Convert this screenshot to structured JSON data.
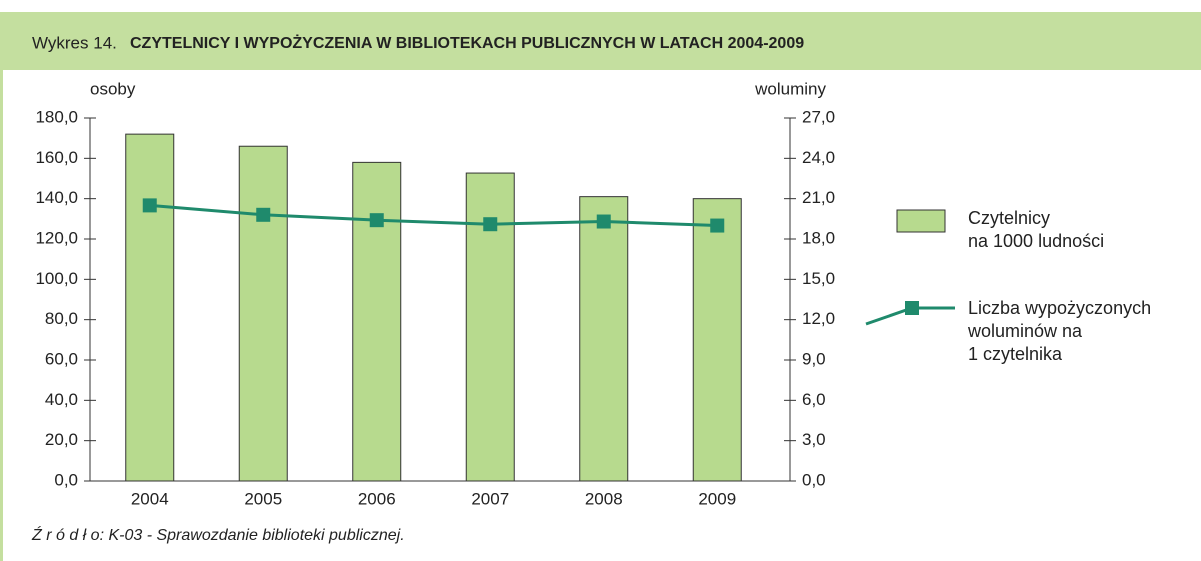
{
  "chart_data": {
    "type": "bar_line",
    "title_prefix": "Wykres 14.",
    "title": "CZYTELNICY I WYPOŻYCZENIA W BIBLIOTEKACH PUBLICZNYCH W LATACH 2004-2009",
    "y_label": "osoby",
    "y2_label": "woluminy",
    "categories": [
      "2004",
      "2005",
      "2006",
      "2007",
      "2008",
      "2009"
    ],
    "series": [
      {
        "name": "Czytelnicy\nna 1000 ludności",
        "type": "bar",
        "color": "#b7da8e",
        "values": [
          172,
          166,
          158,
          152.7,
          141,
          140
        ]
      },
      {
        "name": "Liczba wypożyczonych\nwoluminów na\n1 czytelnika",
        "type": "line",
        "axis": "y2",
        "color": "#1f8a6c",
        "values": [
          20.5,
          19.8,
          19.4,
          19.1,
          19.3,
          19.0
        ]
      }
    ],
    "ylim": [
      0,
      180
    ],
    "yticks": [
      {
        "value": 0,
        "label": "0,0"
      },
      {
        "value": 20,
        "label": "20,0"
      },
      {
        "value": 40,
        "label": "40,0"
      },
      {
        "value": 60,
        "label": "60,0"
      },
      {
        "value": 80,
        "label": "80,0"
      },
      {
        "value": 100,
        "label": "100,0"
      },
      {
        "value": 120,
        "label": "120,0"
      },
      {
        "value": 140,
        "label": "140,0"
      },
      {
        "value": 160,
        "label": "160,0"
      },
      {
        "value": 180,
        "label": "180,0"
      }
    ],
    "y2lim": [
      0,
      27
    ],
    "y2ticks": [
      {
        "value": 0,
        "label": "0,0"
      },
      {
        "value": 3,
        "label": "3,0"
      },
      {
        "value": 6,
        "label": "6,0"
      },
      {
        "value": 9,
        "label": "9,0"
      },
      {
        "value": 12,
        "label": "12,0"
      },
      {
        "value": 15,
        "label": "15,0"
      },
      {
        "value": 18,
        "label": "18,0"
      },
      {
        "value": 21,
        "label": "21,0"
      },
      {
        "value": 24,
        "label": "24,0"
      },
      {
        "value": 27,
        "label": "27,0"
      }
    ],
    "grid": false,
    "source": "Ź r ó d ł o: K-03 - Sprawozdanie biblioteki publicznej."
  }
}
